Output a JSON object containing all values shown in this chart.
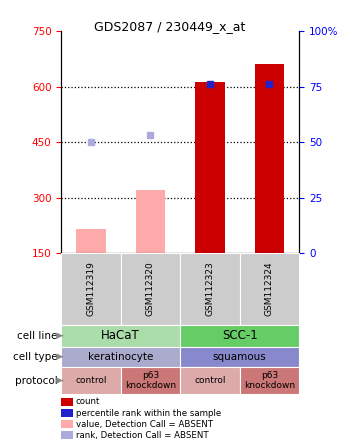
{
  "title": "GDS2087 / 230449_x_at",
  "samples": [
    "GSM112319",
    "GSM112320",
    "GSM112323",
    "GSM112324"
  ],
  "bar_values_present": [
    null,
    null,
    612,
    660
  ],
  "bar_values_absent": [
    215,
    320,
    null,
    null
  ],
  "percentile_values": [
    450,
    470,
    606,
    607
  ],
  "percentile_absent": [
    true,
    true,
    false,
    false
  ],
  "ylim_left": [
    150,
    750
  ],
  "yticks_left": [
    150,
    300,
    450,
    600,
    750
  ],
  "ytick_labels_left": [
    "150",
    "300",
    "450",
    "600",
    "750"
  ],
  "yticks_right": [
    0,
    25,
    50,
    75,
    100
  ],
  "ytick_labels_right": [
    "0",
    "25",
    "50",
    "75",
    "100%"
  ],
  "bar_color_present": "#cc0000",
  "bar_color_absent": "#ffaaaa",
  "percentile_color_present": "#2222cc",
  "percentile_color_absent": "#aaaadd",
  "chart_bg": "#ffffff",
  "sample_box_color": "#cccccc",
  "cell_line_spans": [
    [
      0,
      1,
      "HaCaT",
      "#aaddaa"
    ],
    [
      2,
      3,
      "SCC-1",
      "#66cc66"
    ]
  ],
  "cell_type_spans": [
    [
      0,
      1,
      "keratinocyte",
      "#aaaacc"
    ],
    [
      2,
      3,
      "squamous",
      "#8888cc"
    ]
  ],
  "protocol_items": [
    [
      0,
      "control",
      "#ddaaaa"
    ],
    [
      1,
      "p63\nknockdown",
      "#cc7777"
    ],
    [
      2,
      "control",
      "#ddaaaa"
    ],
    [
      3,
      "p63\nknockdown",
      "#cc7777"
    ]
  ],
  "legend_items": [
    [
      "#cc0000",
      "count"
    ],
    [
      "#2222cc",
      "percentile rank within the sample"
    ],
    [
      "#ffaaaa",
      "value, Detection Call = ABSENT"
    ],
    [
      "#aaaadd",
      "rank, Detection Call = ABSENT"
    ]
  ],
  "row_labels": [
    "cell line",
    "cell type",
    "protocol"
  ]
}
